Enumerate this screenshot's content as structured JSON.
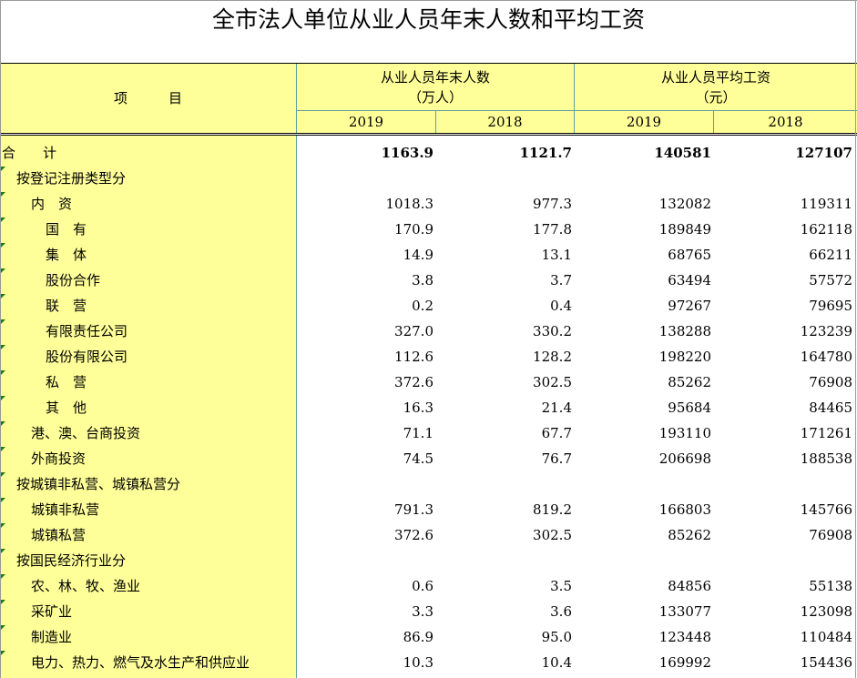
{
  "title": "全市法人单位从业人员年末人数和平均工资",
  "header": {
    "project": "项　　　目",
    "group1": {
      "line1": "从业人员年末人数",
      "line2": "（万人）"
    },
    "group2": {
      "line1": "从业人员平均工资",
      "line2": "（元）"
    },
    "years": [
      "2019",
      "2018",
      "2019",
      "2018"
    ]
  },
  "rows": [
    {
      "label": "合　　计",
      "indent": 0,
      "bold": true,
      "values": [
        "1163.9",
        "1121.7",
        "140581",
        "127107"
      ]
    },
    {
      "label": "按登记注册类型分",
      "indent": 1,
      "values": [
        "",
        "",
        "",
        ""
      ]
    },
    {
      "label": "内　资",
      "indent": 2,
      "values": [
        "1018.3",
        "977.3",
        "132082",
        "119311"
      ]
    },
    {
      "label": "国　有",
      "indent": 3,
      "values": [
        "170.9",
        "177.8",
        "189849",
        "162118"
      ]
    },
    {
      "label": "集　体",
      "indent": 3,
      "values": [
        "14.9",
        "13.1",
        "68765",
        "66211"
      ]
    },
    {
      "label": "股份合作",
      "indent": 3,
      "values": [
        "3.8",
        "3.7",
        "63494",
        "57572"
      ]
    },
    {
      "label": "联　营",
      "indent": 3,
      "values": [
        "0.2",
        "0.4",
        "97267",
        "79695"
      ]
    },
    {
      "label": "有限责任公司",
      "indent": 3,
      "values": [
        "327.0",
        "330.2",
        "138288",
        "123239"
      ]
    },
    {
      "label": "股份有限公司",
      "indent": 3,
      "values": [
        "112.6",
        "128.2",
        "198220",
        "164780"
      ]
    },
    {
      "label": "私　营",
      "indent": 3,
      "values": [
        "372.6",
        "302.5",
        "85262",
        "76908"
      ]
    },
    {
      "label": "其　他",
      "indent": 3,
      "values": [
        "16.3",
        "21.4",
        "95684",
        "84465"
      ]
    },
    {
      "label": "港、澳、台商投资",
      "indent": 2,
      "values": [
        "71.1",
        "67.7",
        "193110",
        "171261"
      ]
    },
    {
      "label": "外商投资",
      "indent": 2,
      "values": [
        "74.5",
        "76.7",
        "206698",
        "188538"
      ]
    },
    {
      "label": "按城镇非私营、城镇私营分",
      "indent": 1,
      "values": [
        "",
        "",
        "",
        ""
      ]
    },
    {
      "label": "城镇非私营",
      "indent": 2,
      "values": [
        "791.3",
        "819.2",
        "166803",
        "145766"
      ]
    },
    {
      "label": "城镇私营",
      "indent": 2,
      "values": [
        "372.6",
        "302.5",
        "85262",
        "76908"
      ]
    },
    {
      "label": "按国民经济行业分",
      "indent": 1,
      "values": [
        "",
        "",
        "",
        ""
      ]
    },
    {
      "label": "农、林、牧、渔业",
      "indent": 2,
      "values": [
        "0.6",
        "3.5",
        "84856",
        "55138"
      ]
    },
    {
      "label": "采矿业",
      "indent": 2,
      "values": [
        "3.3",
        "3.6",
        "133077",
        "123098"
      ]
    },
    {
      "label": "制造业",
      "indent": 2,
      "values": [
        "86.9",
        "95.0",
        "123448",
        "110484"
      ]
    },
    {
      "label": "电力、热力、燃气及水生产和供应业",
      "indent": 2,
      "values": [
        "10.3",
        "10.4",
        "169992",
        "154436"
      ]
    }
  ]
}
